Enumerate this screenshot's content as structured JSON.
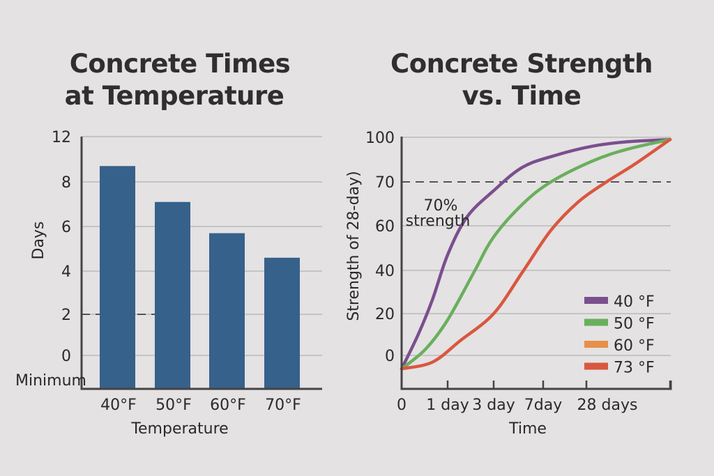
{
  "colors": {
    "background": "#e4e2e3",
    "bar": "#36618a",
    "reference_line": "#555555"
  },
  "chart_data": [
    {
      "type": "bar",
      "title_lines": [
        "Concrete Times",
        "at Temperature"
      ],
      "xlabel": "Temperature",
      "ylabel": "Days",
      "categories": [
        "40°F",
        "50°F",
        "60°F",
        "70°F"
      ],
      "values": [
        9.4,
        7.1,
        5.7,
        4.6
      ],
      "yticks": [
        0,
        2,
        4,
        6,
        8,
        12
      ],
      "ytick_labels": [
        "0",
        "2",
        "4",
        "6",
        "8",
        "12"
      ],
      "reference_line": {
        "value": 2,
        "style": "dashed",
        "label": "Minimum"
      },
      "grid": true
    },
    {
      "type": "line",
      "title_lines": [
        "Concrete Strength",
        "vs. Time"
      ],
      "xlabel": "Time",
      "ylabel": "Strength of 28-day)",
      "xtick_labels": [
        "0",
        "1 day",
        "3 day",
        "7day",
        "28 days"
      ],
      "yticks": [
        0,
        20,
        40,
        60,
        70,
        100
      ],
      "ytick_labels": [
        "0",
        "20",
        "40",
        "60",
        "70",
        "100"
      ],
      "reference_line": {
        "value": 70,
        "style": "dashed",
        "label_lines": [
          "70%",
          "strength"
        ]
      },
      "legend_position": "bottom-right",
      "grid": true,
      "series": [
        {
          "name": "40 °F",
          "color": "#7a4f8e",
          "x": [
            0,
            0.36,
            0.67,
            1,
            1.42,
            2,
            2.59,
            3.3,
            4.07,
            4.49,
            5
          ],
          "y": [
            -6,
            10,
            26.5,
            47,
            62,
            68,
            80,
            88,
            94,
            97,
            98.5
          ]
        },
        {
          "name": "50 °F",
          "color": "#6aaf5c",
          "x": [
            0,
            0.52,
            1,
            1.58,
            2,
            2.59,
            3.18,
            4.07,
            4.49,
            5
          ],
          "y": [
            -6,
            3,
            17,
            39.5,
            55,
            65,
            70,
            84,
            92,
            98.5
          ]
        },
        {
          "name": "60 °F",
          "color": "#e8904a",
          "x": [],
          "y": []
        },
        {
          "name": "73 °F",
          "color": "#d9573f",
          "x": [
            0,
            0.67,
            1.27,
            2,
            2.59,
            3.18,
            3.82,
            4.24,
            4.58,
            5
          ],
          "y": [
            -6,
            -3,
            7,
            20,
            39.5,
            58,
            65.5,
            70,
            82,
            98.5
          ]
        }
      ]
    }
  ]
}
